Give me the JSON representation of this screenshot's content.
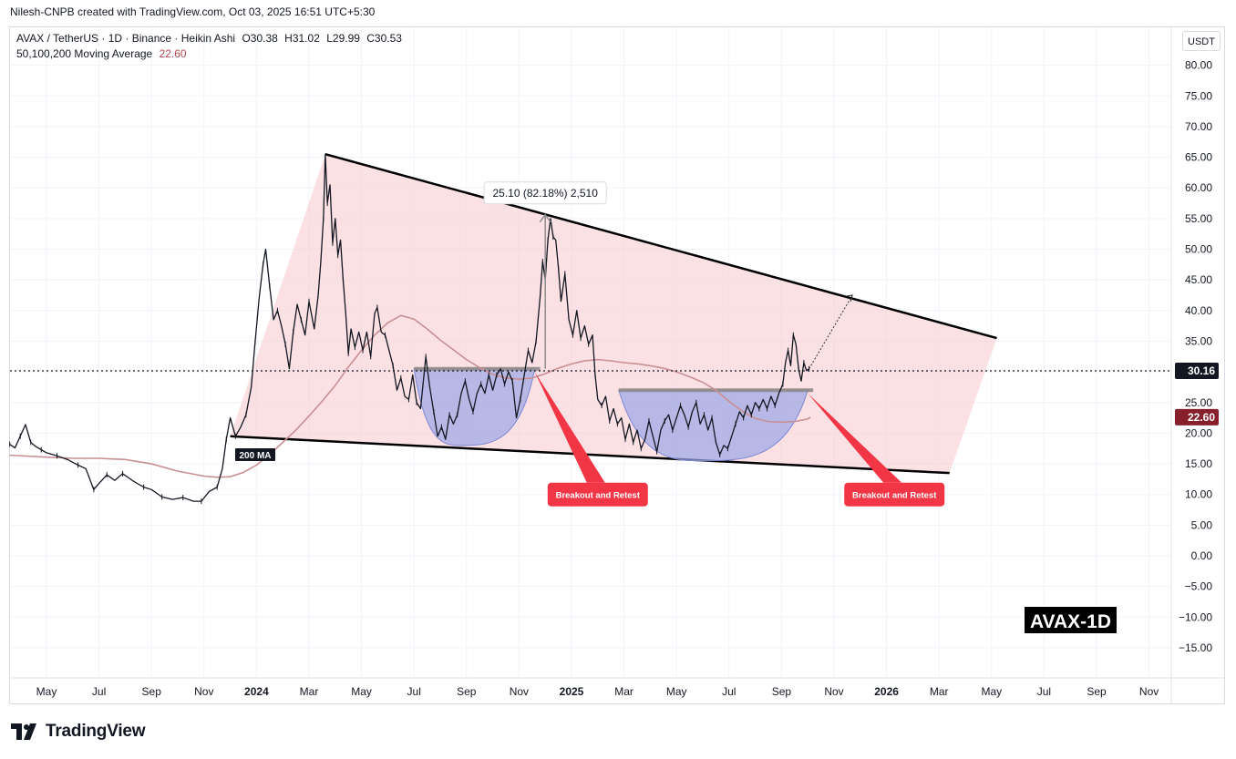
{
  "header": {
    "credit": "Nilesh-CNPB created with TradingView.com, Oct 03, 2025 16:51 UTC+5:30",
    "symbol": "AVAX / TetherUS · 1D · Binance · Heikin Ashi",
    "ohlc": {
      "O": "O30.38",
      "H": "H31.02",
      "L": "L29.99",
      "C": "C30.53"
    },
    "indicator": "50,100,200 Moving Average",
    "indicator_value": "22.60",
    "unit": "USDT"
  },
  "brand": {
    "name": "TradingView"
  },
  "colors": {
    "accent_red": "#f23645",
    "ma": "#c98f93",
    "wedge": "#f8cdd1",
    "cup": "#9aa7e6",
    "price_line": "#131722"
  },
  "chart_data": {
    "type": "line",
    "title": "AVAX-1D",
    "y_axis": {
      "min": -15,
      "max": 80,
      "step": 5,
      "position": "right",
      "ticks": [
        "80.00",
        "75.00",
        "70.00",
        "65.00",
        "60.00",
        "55.00",
        "50.00",
        "45.00",
        "40.00",
        "35.00",
        "30.00",
        "25.00",
        "20.00",
        "15.00",
        "10.00",
        "5.00",
        "0.00",
        "−5.00",
        "−10.00",
        "−15.00"
      ]
    },
    "x_axis": {
      "ticks": [
        {
          "label": "May",
          "t": 0
        },
        {
          "label": "Jul",
          "t": 2
        },
        {
          "label": "Sep",
          "t": 4
        },
        {
          "label": "Nov",
          "t": 6
        },
        {
          "label": "2024",
          "t": 8,
          "bold": true
        },
        {
          "label": "Mar",
          "t": 10
        },
        {
          "label": "May",
          "t": 12
        },
        {
          "label": "Jul",
          "t": 14
        },
        {
          "label": "Sep",
          "t": 16
        },
        {
          "label": "Nov",
          "t": 18
        },
        {
          "label": "2025",
          "t": 20,
          "bold": true
        },
        {
          "label": "Mar",
          "t": 22
        },
        {
          "label": "May",
          "t": 24
        },
        {
          "label": "Jul",
          "t": 26
        },
        {
          "label": "Sep",
          "t": 28
        },
        {
          "label": "Nov",
          "t": 30
        },
        {
          "label": "2026",
          "t": 32,
          "bold": true
        },
        {
          "label": "Mar",
          "t": 34
        },
        {
          "label": "May",
          "t": 36
        },
        {
          "label": "Jul",
          "t": 38
        },
        {
          "label": "Sep",
          "t": 40
        },
        {
          "label": "Nov",
          "t": 42
        }
      ]
    },
    "price": [
      [
        -1.4,
        18.2
      ],
      [
        -1.2,
        17.6
      ],
      [
        -1.0,
        19.5
      ],
      [
        -0.8,
        21.4
      ],
      [
        -0.6,
        18.5
      ],
      [
        -0.4,
        17.8
      ],
      [
        -0.2,
        17.3
      ],
      [
        0,
        16.8
      ],
      [
        0.4,
        16.3
      ],
      [
        0.8,
        15.7
      ],
      [
        1.2,
        14.8
      ],
      [
        1.5,
        14.2
      ],
      [
        1.8,
        10.8
      ],
      [
        2.0,
        11.8
      ],
      [
        2.3,
        13.2
      ],
      [
        2.6,
        12.3
      ],
      [
        2.9,
        13.4
      ],
      [
        3.3,
        12.2
      ],
      [
        3.7,
        11.2
      ],
      [
        4.0,
        10.8
      ],
      [
        4.4,
        9.6
      ],
      [
        4.8,
        9.2
      ],
      [
        5.2,
        9.5
      ],
      [
        5.6,
        8.9
      ],
      [
        5.9,
        8.9
      ],
      [
        6.2,
        10.5
      ],
      [
        6.5,
        11.2
      ],
      [
        6.7,
        14.2
      ],
      [
        6.85,
        19.0
      ],
      [
        7.0,
        22.5
      ],
      [
        7.2,
        19.5
      ],
      [
        7.4,
        21.0
      ],
      [
        7.6,
        23.0
      ],
      [
        7.8,
        27.5
      ],
      [
        7.95,
        35.0
      ],
      [
        8.1,
        42.0
      ],
      [
        8.25,
        47.5
      ],
      [
        8.35,
        50.0
      ],
      [
        8.5,
        44.0
      ],
      [
        8.65,
        38.5
      ],
      [
        8.8,
        40.0
      ],
      [
        8.95,
        37.5
      ],
      [
        9.1,
        34.5
      ],
      [
        9.25,
        30.5
      ],
      [
        9.4,
        36.5
      ],
      [
        9.55,
        41.0
      ],
      [
        9.7,
        38.5
      ],
      [
        9.85,
        36.0
      ],
      [
        10.0,
        41.5
      ],
      [
        10.2,
        37.0
      ],
      [
        10.35,
        42.5
      ],
      [
        10.45,
        48.0
      ],
      [
        10.55,
        55.0
      ],
      [
        10.62,
        65.5
      ],
      [
        10.7,
        57.5
      ],
      [
        10.8,
        60.5
      ],
      [
        10.9,
        51.0
      ],
      [
        11.0,
        55.0
      ],
      [
        11.1,
        49.0
      ],
      [
        11.2,
        51.5
      ],
      [
        11.3,
        45.0
      ],
      [
        11.4,
        39.5
      ],
      [
        11.5,
        33.0
      ],
      [
        11.6,
        37.0
      ],
      [
        11.75,
        34.0
      ],
      [
        11.9,
        36.5
      ],
      [
        12.05,
        33.5
      ],
      [
        12.2,
        36.5
      ],
      [
        12.35,
        32.5
      ],
      [
        12.5,
        39.5
      ],
      [
        12.6,
        40.5
      ],
      [
        12.75,
        36.5
      ],
      [
        12.9,
        36.0
      ],
      [
        13.05,
        33.5
      ],
      [
        13.2,
        31.0
      ],
      [
        13.35,
        27.0
      ],
      [
        13.5,
        29.0
      ],
      [
        13.65,
        26.0
      ],
      [
        13.8,
        25.5
      ],
      [
        13.95,
        29.5
      ],
      [
        14.1,
        25.0
      ],
      [
        14.25,
        24.0
      ],
      [
        14.45,
        32.5
      ],
      [
        14.6,
        27.5
      ],
      [
        14.75,
        23.5
      ],
      [
        14.9,
        19.5
      ],
      [
        15.05,
        21.0
      ],
      [
        15.2,
        19.0
      ],
      [
        15.35,
        23.0
      ],
      [
        15.5,
        21.5
      ],
      [
        15.65,
        23.0
      ],
      [
        15.8,
        26.5
      ],
      [
        15.95,
        28.5
      ],
      [
        16.1,
        25.5
      ],
      [
        16.25,
        23.5
      ],
      [
        16.4,
        26.5
      ],
      [
        16.55,
        28.0
      ],
      [
        16.7,
        26.5
      ],
      [
        16.85,
        29.5
      ],
      [
        17.0,
        27.0
      ],
      [
        17.15,
        29.5
      ],
      [
        17.3,
        30.5
      ],
      [
        17.45,
        28.0
      ],
      [
        17.6,
        30.0
      ],
      [
        17.75,
        28.5
      ],
      [
        17.9,
        22.5
      ],
      [
        18.05,
        25.5
      ],
      [
        18.2,
        29.5
      ],
      [
        18.35,
        33.5
      ],
      [
        18.5,
        31.5
      ],
      [
        18.65,
        35.0
      ],
      [
        18.8,
        42.0
      ],
      [
        18.9,
        48.0
      ],
      [
        19.0,
        45.0
      ],
      [
        19.1,
        51.5
      ],
      [
        19.2,
        55.0
      ],
      [
        19.3,
        52.0
      ],
      [
        19.4,
        51.5
      ],
      [
        19.5,
        47.0
      ],
      [
        19.6,
        41.5
      ],
      [
        19.75,
        46.0
      ],
      [
        19.9,
        38.5
      ],
      [
        20.05,
        36.0
      ],
      [
        20.2,
        40.0
      ],
      [
        20.35,
        35.5
      ],
      [
        20.5,
        37.5
      ],
      [
        20.65,
        34.5
      ],
      [
        20.8,
        36.0
      ],
      [
        20.9,
        29.5
      ],
      [
        21.0,
        25.5
      ],
      [
        21.15,
        24.5
      ],
      [
        21.3,
        26.0
      ],
      [
        21.45,
        22.0
      ],
      [
        21.6,
        24.0
      ],
      [
        21.75,
        21.5
      ],
      [
        21.9,
        22.5
      ],
      [
        22.05,
        19.0
      ],
      [
        22.2,
        21.5
      ],
      [
        22.35,
        18.5
      ],
      [
        22.5,
        20.5
      ],
      [
        22.65,
        17.5
      ],
      [
        22.8,
        19.0
      ],
      [
        22.95,
        22.0
      ],
      [
        23.1,
        19.5
      ],
      [
        23.25,
        17.0
      ],
      [
        23.4,
        20.5
      ],
      [
        23.55,
        22.0
      ],
      [
        23.7,
        23.0
      ],
      [
        23.85,
        20.5
      ],
      [
        24.0,
        22.5
      ],
      [
        24.15,
        24.5
      ],
      [
        24.3,
        23.0
      ],
      [
        24.45,
        21.0
      ],
      [
        24.6,
        23.5
      ],
      [
        24.75,
        25.0
      ],
      [
        24.9,
        21.5
      ],
      [
        25.05,
        23.0
      ],
      [
        25.2,
        20.5
      ],
      [
        25.35,
        22.5
      ],
      [
        25.5,
        18.5
      ],
      [
        25.65,
        16.5
      ],
      [
        25.8,
        18.0
      ],
      [
        25.95,
        17.5
      ],
      [
        26.1,
        19.5
      ],
      [
        26.25,
        21.5
      ],
      [
        26.4,
        23.5
      ],
      [
        26.55,
        22.5
      ],
      [
        26.7,
        24.5
      ],
      [
        26.85,
        23.0
      ],
      [
        27.0,
        25.0
      ],
      [
        27.15,
        24.0
      ],
      [
        27.3,
        25.5
      ],
      [
        27.45,
        24.0
      ],
      [
        27.6,
        26.0
      ],
      [
        27.75,
        24.5
      ],
      [
        27.9,
        26.5
      ],
      [
        28.05,
        28.0
      ],
      [
        28.15,
        31.5
      ],
      [
        28.25,
        33.5
      ],
      [
        28.35,
        31.0
      ],
      [
        28.45,
        36.0
      ],
      [
        28.55,
        34.5
      ],
      [
        28.65,
        30.5
      ],
      [
        28.75,
        28.5
      ],
      [
        28.85,
        31.5
      ],
      [
        28.95,
        30.2
      ],
      [
        29.05,
        30.5
      ]
    ],
    "ma200": [
      [
        -1.4,
        16.4
      ],
      [
        0,
        16.1
      ],
      [
        1,
        15.9
      ],
      [
        2,
        15.9
      ],
      [
        3,
        15.7
      ],
      [
        4,
        15.0
      ],
      [
        5,
        13.8
      ],
      [
        6,
        13.0
      ],
      [
        6.5,
        12.8
      ],
      [
        7,
        12.9
      ],
      [
        7.5,
        13.6
      ],
      [
        8,
        14.8
      ],
      [
        8.5,
        16.5
      ],
      [
        9,
        18.5
      ],
      [
        9.5,
        20.5
      ],
      [
        10,
        22.8
      ],
      [
        10.5,
        25.2
      ],
      [
        11,
        27.8
      ],
      [
        11.5,
        30.8
      ],
      [
        12,
        33.5
      ],
      [
        12.5,
        36.0
      ],
      [
        13,
        38.0
      ],
      [
        13.5,
        39.2
      ],
      [
        14,
        38.6
      ],
      [
        14.5,
        37.0
      ],
      [
        15,
        35.2
      ],
      [
        15.5,
        33.6
      ],
      [
        16,
        32.0
      ],
      [
        16.5,
        30.7
      ],
      [
        17,
        29.6
      ],
      [
        17.5,
        29.0
      ],
      [
        18,
        28.8
      ],
      [
        18.5,
        29.0
      ],
      [
        19,
        29.7
      ],
      [
        19.5,
        30.6
      ],
      [
        20,
        31.3
      ],
      [
        20.5,
        31.8
      ],
      [
        21,
        32.0
      ],
      [
        21.5,
        31.8
      ],
      [
        22,
        31.5
      ],
      [
        22.5,
        31.3
      ],
      [
        23,
        31.0
      ],
      [
        23.5,
        30.6
      ],
      [
        24,
        30.0
      ],
      [
        24.5,
        29.2
      ],
      [
        25,
        28.3
      ],
      [
        25.5,
        27.0
      ],
      [
        26,
        25.2
      ],
      [
        26.5,
        23.6
      ],
      [
        27,
        22.4
      ],
      [
        27.5,
        21.9
      ],
      [
        28,
        21.8
      ],
      [
        28.5,
        21.9
      ],
      [
        29,
        22.3
      ],
      [
        29.1,
        22.6
      ]
    ],
    "current_price": {
      "value": 30.16,
      "label": "30.16"
    },
    "ma_label": {
      "value": 22.6,
      "label": "22.60",
      "text": "200 MA"
    },
    "wedge": {
      "upper_line": [
        [
          10.62,
          65.5
        ],
        [
          36.2,
          35.5
        ]
      ],
      "lower_line": [
        [
          7.0,
          19.5
        ],
        [
          34.4,
          13.5
        ]
      ],
      "shaded_polygon": [
        [
          7.0,
          19.5
        ],
        [
          10.62,
          65.5
        ],
        [
          36.2,
          35.5
        ],
        [
          34.4,
          13.5
        ]
      ]
    },
    "cups": [
      {
        "left": [
          14.0,
          30.5
        ],
        "bottom": [
          15.9,
          18.0
        ],
        "right": [
          18.6,
          30.5
        ],
        "neckline": 30.5
      },
      {
        "left": [
          21.8,
          27.0
        ],
        "bottom": [
          25.2,
          15.5
        ],
        "right": [
          29.0,
          27.0
        ],
        "neckline": 27.0
      }
    ],
    "measure": {
      "x": 19.0,
      "from": 30.5,
      "to": 55.6,
      "label": "25.10 (82.18%) 2,510"
    },
    "projection": {
      "from": [
        29.05,
        30.5
      ],
      "to": [
        30.7,
        42.5
      ]
    },
    "annotations": [
      {
        "text": "Breakout and Retest",
        "anchor": [
          18.6,
          30.0
        ],
        "box_x": 21.0,
        "box_y": 10.0
      },
      {
        "text": "Breakout and Retest",
        "anchor": [
          29.0,
          26.5
        ],
        "box_x": 32.3,
        "box_y": 10.0
      }
    ]
  }
}
